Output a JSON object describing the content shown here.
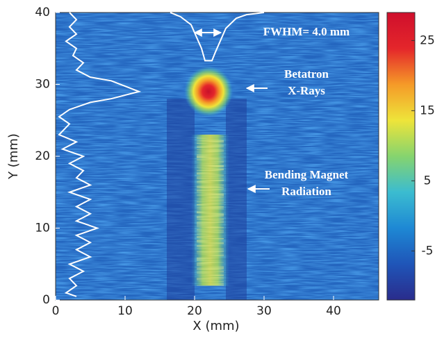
{
  "chart_data": {
    "type": "heatmap",
    "xlabel": "X (mm)",
    "ylabel": "Y (mm)",
    "xlim": [
      0,
      46.5
    ],
    "ylim": [
      0,
      40
    ],
    "xticks": [
      0,
      10,
      20,
      30,
      40
    ],
    "yticks": [
      0,
      10,
      20,
      30,
      40
    ],
    "colorbar": {
      "clim": [
        -12,
        29
      ],
      "ticks": [
        -5,
        5,
        15,
        25
      ],
      "colormap": [
        "#2a2c8c",
        "#1f55b8",
        "#1e88d4",
        "#3bbcd0",
        "#86d46e",
        "#eee43a",
        "#f59a28",
        "#e4262b",
        "#cf0f2c"
      ]
    },
    "series": [
      {
        "name": "horizontal profile",
        "color": "#ffffff",
        "x": [
          16.5,
          18,
          19.5,
          21,
          21.5,
          22.5,
          23,
          24.5,
          26,
          27.5,
          30
        ],
        "y": [
          40,
          39.4,
          38.3,
          35,
          33.3,
          33.3,
          34.5,
          37.8,
          39.2,
          39.7,
          40
        ]
      },
      {
        "name": "vertical profile",
        "color": "#ffffff",
        "x": [
          2,
          3,
          2,
          3,
          1.5,
          3,
          2.5,
          4,
          3,
          5,
          8,
          12,
          8,
          5,
          2,
          0.5,
          2,
          0.5,
          3,
          1,
          4,
          2,
          4,
          3,
          5,
          2,
          5,
          3,
          5,
          3,
          6,
          3,
          5,
          3,
          5,
          2,
          4,
          2,
          3,
          1.5,
          3
        ],
        "y": [
          40,
          39,
          38,
          37,
          36,
          35,
          34,
          33,
          32,
          31,
          30.5,
          29,
          28,
          27.5,
          26.5,
          25.5,
          24.5,
          23,
          22,
          21,
          20,
          19,
          18,
          17,
          16,
          15,
          14,
          13,
          12,
          11,
          10,
          9,
          8,
          7,
          6,
          5,
          4,
          3,
          2,
          1,
          0.5
        ]
      }
    ],
    "annotations": [
      {
        "lines": [
          "FWHM= 4.0 mm"
        ]
      },
      {
        "lines": [
          "Betatron",
          "X-Rays"
        ]
      },
      {
        "lines": [
          "Bending Magnet",
          "Radiation"
        ]
      }
    ]
  }
}
